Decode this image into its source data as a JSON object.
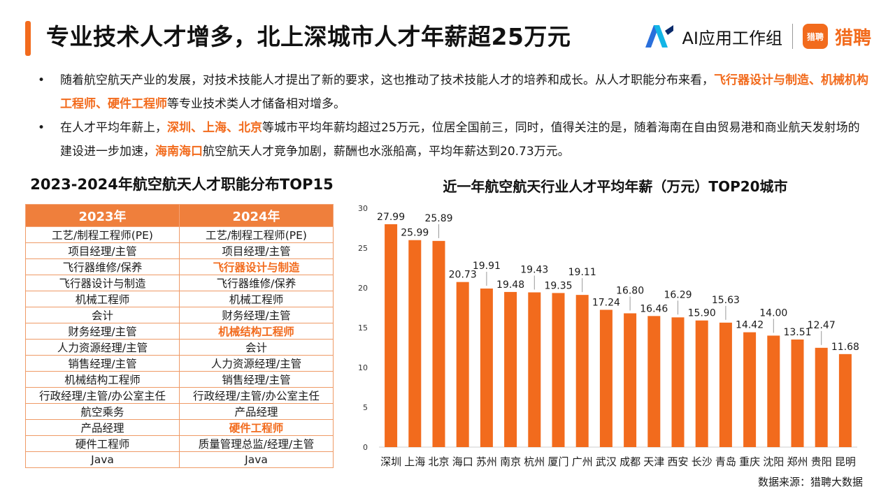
{
  "header": {
    "title": "专业技术人才增多，北上深城市人才年薪超25万元",
    "brand_ai": "AI应用工作组",
    "brand_liepin_icon": "猎聘",
    "brand_liepin": "猎聘"
  },
  "bullets": [
    {
      "dot": "•",
      "parts": [
        {
          "text": "随着航空航天产业的发展，对技术技能人才提出了新的要求，这也推动了技术技能人才的培养和成长。从人才职能分布来看，",
          "hl": false
        },
        {
          "text": "飞行器设计与制造、机械机构工程师、硬件工程师",
          "hl": true
        },
        {
          "text": "等专业技术类人才储备相对增多。",
          "hl": false
        }
      ]
    },
    {
      "dot": "•",
      "parts": [
        {
          "text": "在人才平均年薪上，",
          "hl": false
        },
        {
          "text": "深圳、上海、北京",
          "hl": true
        },
        {
          "text": "等城市平均年薪均超过25万元，位居全国前三，同时，值得关注的是，随着海南在自由贸易港和商业航天发射场的建设进一步加速，",
          "hl": false
        },
        {
          "text": "海南海口",
          "hl": true
        },
        {
          "text": "航空航天人才竞争加剧，薪酬也水涨船高，平均年薪达到20.73万元。",
          "hl": false
        }
      ]
    }
  ],
  "table": {
    "title": "2023-2024年航空航天人才职能分布TOP15",
    "headers": [
      "2023年",
      "2024年"
    ],
    "rows": [
      [
        {
          "text": "工艺/制程工程师(PE)",
          "hl": false
        },
        {
          "text": "工艺/制程工程师(PE)",
          "hl": false
        }
      ],
      [
        {
          "text": "项目经理/主管",
          "hl": false
        },
        {
          "text": "项目经理/主管",
          "hl": false
        }
      ],
      [
        {
          "text": "飞行器维修/保养",
          "hl": false
        },
        {
          "text": "飞行器设计与制造",
          "hl": true
        }
      ],
      [
        {
          "text": "飞行器设计与制造",
          "hl": false
        },
        {
          "text": "飞行器维修/保养",
          "hl": false
        }
      ],
      [
        {
          "text": "机械工程师",
          "hl": false
        },
        {
          "text": "机械工程师",
          "hl": false
        }
      ],
      [
        {
          "text": "会计",
          "hl": false
        },
        {
          "text": "财务经理/主管",
          "hl": false
        }
      ],
      [
        {
          "text": "财务经理/主管",
          "hl": false
        },
        {
          "text": "机械结构工程师",
          "hl": true
        }
      ],
      [
        {
          "text": "人力资源经理/主管",
          "hl": false
        },
        {
          "text": "会计",
          "hl": false
        }
      ],
      [
        {
          "text": "销售经理/主管",
          "hl": false
        },
        {
          "text": "人力资源经理/主管",
          "hl": false
        }
      ],
      [
        {
          "text": "机械结构工程师",
          "hl": false
        },
        {
          "text": "销售经理/主管",
          "hl": false
        }
      ],
      [
        {
          "text": "行政经理/主管/办公室主任",
          "hl": false
        },
        {
          "text": "行政经理/主管/办公室主任",
          "hl": false
        }
      ],
      [
        {
          "text": "航空乘务",
          "hl": false
        },
        {
          "text": "产品经理",
          "hl": false
        }
      ],
      [
        {
          "text": "产品经理",
          "hl": false
        },
        {
          "text": "硬件工程师",
          "hl": true
        }
      ],
      [
        {
          "text": "硬件工程师",
          "hl": false
        },
        {
          "text": "质量管理总监/经理/主管",
          "hl": false
        }
      ],
      [
        {
          "text": "Java",
          "hl": false
        },
        {
          "text": "Java",
          "hl": false
        }
      ]
    ]
  },
  "chart_data": {
    "type": "bar",
    "title": "近一年航空航天行业人才平均年薪（万元）TOP20城市",
    "categories": [
      "深圳",
      "上海",
      "北京",
      "海口",
      "苏州",
      "南京",
      "杭州",
      "厦门",
      "广州",
      "武汉",
      "成都",
      "天津",
      "西安",
      "长沙",
      "青岛",
      "重庆",
      "沈阳",
      "郑州",
      "贵阳",
      "昆明"
    ],
    "values": [
      27.99,
      25.99,
      25.89,
      20.73,
      19.91,
      19.48,
      19.43,
      19.35,
      19.11,
      17.24,
      16.8,
      16.46,
      16.29,
      15.9,
      15.63,
      14.42,
      14.0,
      13.51,
      12.47,
      11.68
    ],
    "labels": [
      "27.99",
      "25.99",
      "25.89",
      "20.73",
      "19.91",
      "19.48",
      "19.43",
      "19.35",
      "19.11",
      "17.24",
      "16.80",
      "16.46",
      "16.29",
      "15.90",
      "15.63",
      "14.42",
      "14.00",
      "13.51",
      "12.47",
      "11.68"
    ],
    "yticks": [
      0,
      5,
      10,
      15,
      20,
      25,
      30
    ],
    "ylim": [
      0,
      30
    ],
    "grid": false,
    "bar_color": "#f26b1d",
    "label_leader_lines": [
      false,
      false,
      true,
      false,
      true,
      false,
      true,
      false,
      true,
      false,
      true,
      false,
      true,
      false,
      true,
      false,
      true,
      false,
      true,
      false
    ]
  },
  "footer": {
    "source": "数据来源：猎聘大数据"
  }
}
